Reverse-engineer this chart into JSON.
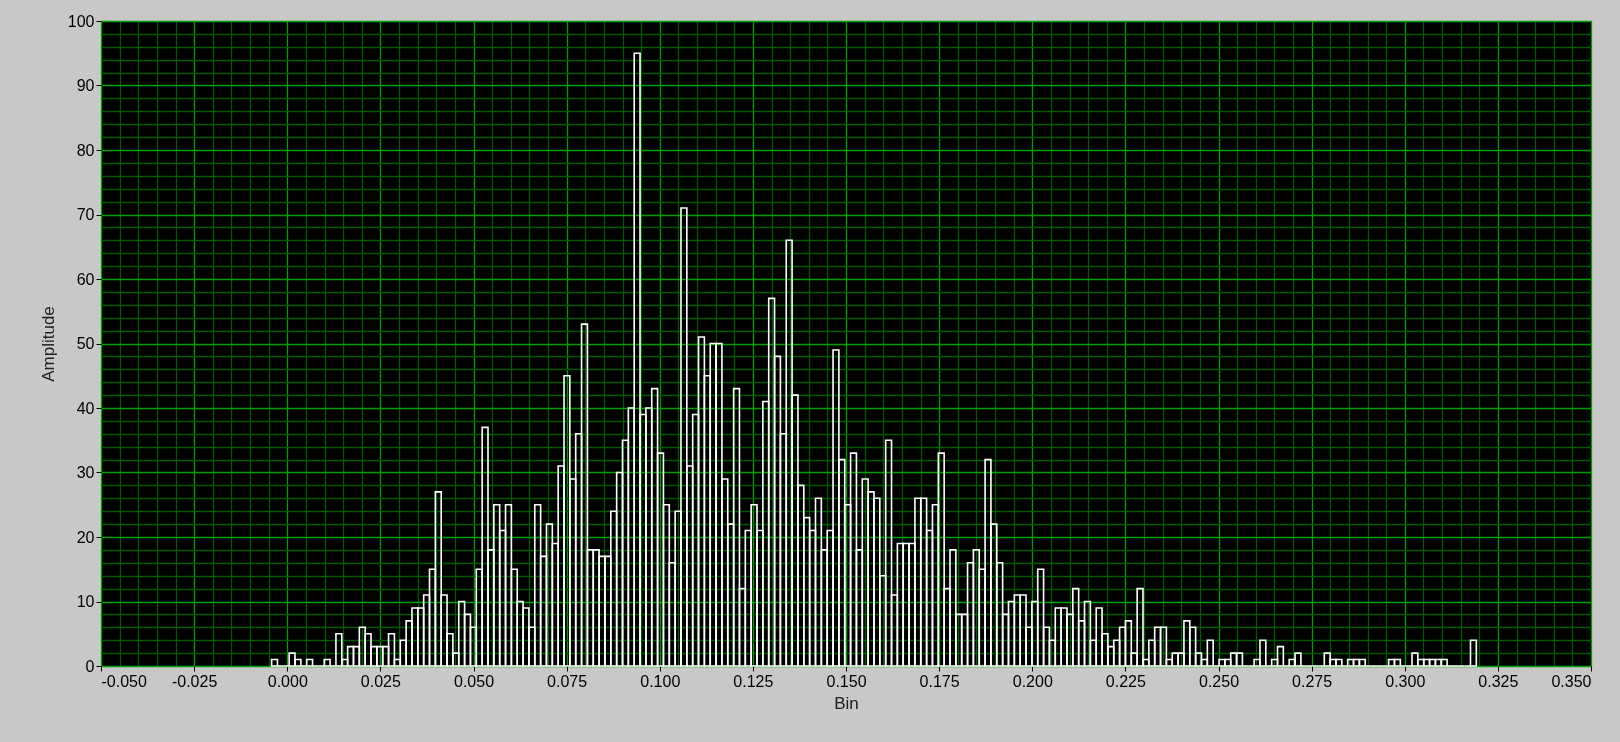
{
  "chart_data": {
    "type": "histogram",
    "xlabel": "Bin",
    "ylabel": "Amplitude",
    "bins": [
      -0.0042,
      -0.00263,
      -0.00106,
      0.00051,
      0.00208,
      0.00365,
      0.00522,
      0.00679,
      0.00836,
      0.00993,
      0.0115,
      0.01307,
      0.01464,
      0.01621,
      0.01778,
      0.01935,
      0.02092,
      0.02249,
      0.02406,
      0.02563,
      0.0272,
      0.02877,
      0.03034,
      0.03191,
      0.03348,
      0.03505,
      0.03662,
      0.03819,
      0.03976,
      0.04133,
      0.0429,
      0.04447,
      0.04604,
      0.04761,
      0.04918,
      0.05075,
      0.05232,
      0.05389,
      0.05546,
      0.05703,
      0.0586,
      0.06017,
      0.06174,
      0.06331,
      0.06488,
      0.06645,
      0.06802,
      0.06959,
      0.07116,
      0.07273,
      0.0743,
      0.07587,
      0.07744,
      0.07901,
      0.08058,
      0.08215,
      0.08372,
      0.08529,
      0.08686,
      0.08843,
      0.09,
      0.09157,
      0.09314,
      0.09471,
      0.09628,
      0.09785,
      0.09942,
      0.10099,
      0.10256,
      0.10413,
      0.1057,
      0.10727,
      0.10884,
      0.11041,
      0.11198,
      0.11355,
      0.11512,
      0.11669,
      0.11826,
      0.11983,
      0.1214,
      0.12297,
      0.12454,
      0.12611,
      0.12768,
      0.12925,
      0.13082,
      0.13239,
      0.13396,
      0.13553,
      0.1371,
      0.13867,
      0.14024,
      0.14181,
      0.14338,
      0.14495,
      0.14652,
      0.14809,
      0.14966,
      0.15123,
      0.1528,
      0.15437,
      0.15594,
      0.15751,
      0.15908,
      0.16065,
      0.16222,
      0.16379,
      0.16536,
      0.16693,
      0.1685,
      0.17007,
      0.17164,
      0.17321,
      0.17478,
      0.17635,
      0.17792,
      0.17949,
      0.18106,
      0.18263,
      0.1842,
      0.18577,
      0.18734,
      0.18891,
      0.19048,
      0.19205,
      0.19362,
      0.19519,
      0.19676,
      0.19833,
      0.1999,
      0.20147,
      0.20304,
      0.20461,
      0.20618,
      0.20775,
      0.20932,
      0.21089,
      0.21246,
      0.21403,
      0.2156,
      0.21717,
      0.21874,
      0.22031,
      0.22188,
      0.22345,
      0.22502,
      0.22659,
      0.22816,
      0.22973,
      0.2313,
      0.23287,
      0.23444,
      0.23601,
      0.23758,
      0.23915,
      0.24072,
      0.24229,
      0.24386,
      0.24543,
      0.247,
      0.24857,
      0.25014,
      0.25171,
      0.25328,
      0.25485,
      0.25642,
      0.25799,
      0.25956,
      0.26113,
      0.2627,
      0.26427,
      0.26584,
      0.26741,
      0.26898,
      0.27055,
      0.27212,
      0.27369,
      0.27526,
      0.27683,
      0.2784,
      0.27997,
      0.28154,
      0.28311,
      0.28468,
      0.28625,
      0.28782,
      0.28939,
      0.29096,
      0.29253,
      0.2941,
      0.29567,
      0.29724,
      0.29881,
      0.30038,
      0.30195,
      0.30352,
      0.30509,
      0.30666,
      0.30823,
      0.3098,
      0.31137,
      0.31294,
      0.31451,
      0.31608,
      0.31765,
      0.31922
    ],
    "values": [
      1,
      0,
      0,
      2,
      1,
      0,
      1,
      0,
      0,
      1,
      0,
      5,
      1,
      3,
      3,
      6,
      5,
      3,
      3,
      3,
      5,
      1,
      4,
      7,
      9,
      9,
      11,
      15,
      27,
      11,
      5,
      2,
      10,
      8,
      6,
      15,
      37,
      18,
      25,
      21,
      25,
      15,
      10,
      9,
      6,
      25,
      17,
      22,
      19,
      31,
      45,
      29,
      36,
      53,
      18,
      18,
      17,
      17,
      24,
      30,
      35,
      40,
      95,
      39,
      40,
      43,
      33,
      25,
      16,
      24,
      71,
      31,
      39,
      51,
      45,
      50,
      50,
      29,
      22,
      43,
      12,
      21,
      25,
      21,
      41,
      57,
      48,
      36,
      66,
      42,
      28,
      23,
      21,
      26,
      18,
      21,
      49,
      32,
      25,
      33,
      18,
      29,
      27,
      26,
      14,
      35,
      11,
      19,
      19,
      19,
      26,
      26,
      21,
      25,
      33,
      12,
      18,
      8,
      8,
      16,
      18,
      15,
      32,
      22,
      16,
      8,
      10,
      11,
      11,
      6,
      10,
      15,
      6,
      4,
      9,
      9,
      8,
      12,
      7,
      10,
      4,
      9,
      5,
      3,
      4,
      6,
      7,
      2,
      12,
      1,
      4,
      6,
      6,
      1,
      2,
      2,
      7,
      6,
      2,
      1,
      4,
      0,
      1,
      1,
      2,
      2,
      0,
      0,
      1,
      4,
      0,
      1,
      3,
      0,
      1,
      2,
      0,
      0,
      0,
      0,
      2,
      1,
      1,
      0,
      1,
      1,
      1,
      0,
      0,
      0,
      0,
      1,
      1,
      0,
      0,
      2,
      1,
      1,
      1,
      1,
      1,
      0,
      0,
      0,
      0,
      4
    ],
    "color": "#ffffff",
    "xlim": [
      -0.05,
      0.35
    ],
    "xticks": [
      {
        "value": -0.05,
        "label": "-0.050"
      },
      {
        "value": -0.045,
        "label": null
      },
      {
        "value": -0.04,
        "label": null
      },
      {
        "value": -0.035,
        "label": null
      },
      {
        "value": -0.03,
        "label": null
      },
      {
        "value": -0.025,
        "label": "-0.025"
      },
      {
        "value": -0.02,
        "label": null
      },
      {
        "value": -0.015,
        "label": null
      },
      {
        "value": -0.01,
        "label": null
      },
      {
        "value": -0.005,
        "label": null
      },
      {
        "value": 0,
        "label": "0.000"
      },
      {
        "value": 0.005,
        "label": null
      },
      {
        "value": 0.01,
        "label": null
      },
      {
        "value": 0.015,
        "label": null
      },
      {
        "value": 0.02,
        "label": null
      },
      {
        "value": 0.025,
        "label": "0.025"
      },
      {
        "value": 0.03,
        "label": null
      },
      {
        "value": 0.035,
        "label": null
      },
      {
        "value": 0.04,
        "label": null
      },
      {
        "value": 0.045,
        "label": null
      },
      {
        "value": 0.05,
        "label": "0.050"
      },
      {
        "value": 0.055,
        "label": null
      },
      {
        "value": 0.06,
        "label": null
      },
      {
        "value": 0.065,
        "label": null
      },
      {
        "value": 0.07,
        "label": null
      },
      {
        "value": 0.075,
        "label": "0.075"
      },
      {
        "value": 0.08,
        "label": null
      },
      {
        "value": 0.085,
        "label": null
      },
      {
        "value": 0.09,
        "label": null
      },
      {
        "value": 0.095,
        "label": null
      },
      {
        "value": 0.1,
        "label": "0.100"
      },
      {
        "value": 0.105,
        "label": null
      },
      {
        "value": 0.11,
        "label": null
      },
      {
        "value": 0.115,
        "label": null
      },
      {
        "value": 0.12,
        "label": null
      },
      {
        "value": 0.125,
        "label": "0.125"
      },
      {
        "value": 0.13,
        "label": null
      },
      {
        "value": 0.135,
        "label": null
      },
      {
        "value": 0.14,
        "label": null
      },
      {
        "value": 0.145,
        "label": null
      },
      {
        "value": 0.15,
        "label": "0.150"
      },
      {
        "value": 0.155,
        "label": null
      },
      {
        "value": 0.16,
        "label": null
      },
      {
        "value": 0.165,
        "label": null
      },
      {
        "value": 0.17,
        "label": null
      },
      {
        "value": 0.175,
        "label": "0.175"
      },
      {
        "value": 0.18,
        "label": null
      },
      {
        "value": 0.185,
        "label": null
      },
      {
        "value": 0.19,
        "label": null
      },
      {
        "value": 0.195,
        "label": null
      },
      {
        "value": 0.2,
        "label": "0.200"
      },
      {
        "value": 0.205,
        "label": null
      },
      {
        "value": 0.21,
        "label": null
      },
      {
        "value": 0.215,
        "label": null
      },
      {
        "value": 0.22,
        "label": null
      },
      {
        "value": 0.225,
        "label": "0.225"
      },
      {
        "value": 0.23,
        "label": null
      },
      {
        "value": 0.235,
        "label": null
      },
      {
        "value": 0.24,
        "label": null
      },
      {
        "value": 0.245,
        "label": null
      },
      {
        "value": 0.25,
        "label": "0.250"
      },
      {
        "value": 0.255,
        "label": null
      },
      {
        "value": 0.26,
        "label": null
      },
      {
        "value": 0.265,
        "label": null
      },
      {
        "value": 0.27,
        "label": null
      },
      {
        "value": 0.275,
        "label": "0.275"
      },
      {
        "value": 0.28,
        "label": null
      },
      {
        "value": 0.285,
        "label": null
      },
      {
        "value": 0.29,
        "label": null
      },
      {
        "value": 0.295,
        "label": null
      },
      {
        "value": 0.3,
        "label": "0.300"
      },
      {
        "value": 0.305,
        "label": null
      },
      {
        "value": 0.31,
        "label": null
      },
      {
        "value": 0.315,
        "label": null
      },
      {
        "value": 0.32,
        "label": null
      },
      {
        "value": 0.325,
        "label": "0.325"
      },
      {
        "value": 0.33,
        "label": null
      },
      {
        "value": 0.335,
        "label": null
      },
      {
        "value": 0.34,
        "label": null
      },
      {
        "value": 0.345,
        "label": null
      },
      {
        "value": 0.35,
        "label": "0.350"
      }
    ],
    "ylim": [
      0,
      100
    ],
    "yticks": [
      0,
      {
        "value": 2,
        "label": null
      },
      {
        "value": 4,
        "label": null
      },
      {
        "value": 6,
        "label": null
      },
      {
        "value": 8,
        "label": null
      },
      10,
      {
        "value": 12,
        "label": null
      },
      {
        "value": 14,
        "label": null
      },
      {
        "value": 16,
        "label": null
      },
      {
        "value": 18,
        "label": null
      },
      20,
      {
        "value": 22,
        "label": null
      },
      {
        "value": 24,
        "label": null
      },
      {
        "value": 26,
        "label": null
      },
      {
        "value": 28,
        "label": null
      },
      30,
      {
        "value": 32,
        "label": null
      },
      {
        "value": 34,
        "label": null
      },
      {
        "value": 36,
        "label": null
      },
      {
        "value": 38,
        "label": null
      },
      40,
      {
        "value": 42,
        "label": null
      },
      {
        "value": 44,
        "label": null
      },
      {
        "value": 46,
        "label": null
      },
      {
        "value": 48,
        "label": null
      },
      50,
      {
        "value": 52,
        "label": null
      },
      {
        "value": 54,
        "label": null
      },
      {
        "value": 56,
        "label": null
      },
      {
        "value": 58,
        "label": null
      },
      60,
      {
        "value": 62,
        "label": null
      },
      {
        "value": 64,
        "label": null
      },
      {
        "value": 66,
        "label": null
      },
      {
        "value": 68,
        "label": null
      },
      70,
      {
        "value": 72,
        "label": null
      },
      {
        "value": 74,
        "label": null
      },
      {
        "value": 76,
        "label": null
      },
      {
        "value": 78,
        "label": null
      },
      80,
      {
        "value": 82,
        "label": null
      },
      {
        "value": 84,
        "label": null
      },
      {
        "value": 86,
        "label": null
      },
      {
        "value": 88,
        "label": null
      },
      90,
      {
        "value": 92,
        "label": null
      },
      {
        "value": 94,
        "label": null
      },
      {
        "value": 96,
        "label": null
      },
      {
        "value": 98,
        "label": null
      },
      100
    ],
    "grid": true
  }
}
